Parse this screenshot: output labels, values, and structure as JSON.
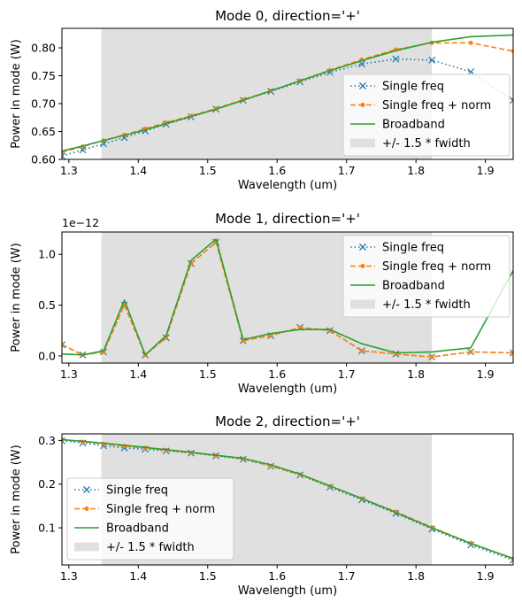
{
  "colors": {
    "single": "#1f77b4",
    "norm": "#ff7f0e",
    "broad": "#2ca02c",
    "band": "#e0e0e0"
  },
  "chart_data": [
    {
      "type": "line",
      "title": "Mode 0, direction='+'",
      "xlabel": "Wavelength (um)",
      "ylabel": "Power in mode (W)",
      "scale_label": "",
      "xlim": [
        1.29,
        1.94
      ],
      "ylim": [
        0.6,
        0.835
      ],
      "xticks": [
        1.3,
        1.4,
        1.5,
        1.6,
        1.7,
        1.8,
        1.9
      ],
      "yticks": [
        0.6,
        0.65,
        0.7,
        0.75,
        0.8
      ],
      "ytick_labels": [
        "0.60",
        "0.65",
        "0.70",
        "0.75",
        "0.80"
      ],
      "band": [
        1.347,
        1.823
      ],
      "legend_position": "lower-right",
      "legend": [
        "Single freq",
        "Single freq + norm",
        "Broadband",
        "+/- 1.5 * fwidth"
      ],
      "series": [
        {
          "name": "Single freq",
          "x": [
            1.29,
            1.32,
            1.35,
            1.38,
            1.41,
            1.44,
            1.476,
            1.512,
            1.551,
            1.591,
            1.633,
            1.676,
            1.722,
            1.771,
            1.823,
            1.879,
            1.94
          ],
          "y": [
            0.606,
            0.617,
            0.628,
            0.639,
            0.651,
            0.663,
            0.676,
            0.69,
            0.706,
            0.722,
            0.739,
            0.756,
            0.771,
            0.78,
            0.778,
            0.757,
            0.706
          ]
        },
        {
          "name": "Single freq + norm",
          "x": [
            1.29,
            1.32,
            1.35,
            1.38,
            1.41,
            1.44,
            1.476,
            1.512,
            1.551,
            1.591,
            1.633,
            1.676,
            1.722,
            1.771,
            1.823,
            1.879,
            1.94
          ],
          "y": [
            0.613,
            0.623,
            0.634,
            0.644,
            0.655,
            0.666,
            0.678,
            0.691,
            0.707,
            0.723,
            0.741,
            0.76,
            0.779,
            0.797,
            0.809,
            0.809,
            0.794
          ]
        },
        {
          "name": "Broadband",
          "x": [
            1.29,
            1.32,
            1.35,
            1.38,
            1.41,
            1.44,
            1.476,
            1.512,
            1.551,
            1.591,
            1.633,
            1.676,
            1.722,
            1.771,
            1.823,
            1.879,
            1.94
          ],
          "y": [
            0.615,
            0.624,
            0.634,
            0.643,
            0.653,
            0.664,
            0.677,
            0.69,
            0.706,
            0.723,
            0.741,
            0.759,
            0.777,
            0.795,
            0.81,
            0.82,
            0.823
          ]
        }
      ]
    },
    {
      "type": "line",
      "title": "Mode 1, direction='+'",
      "xlabel": "Wavelength (um)",
      "ylabel": "Power in mode (W)",
      "scale_label": "1e−12",
      "xlim": [
        1.29,
        1.94
      ],
      "ylim": [
        -0.07,
        1.22
      ],
      "xticks": [
        1.3,
        1.4,
        1.5,
        1.6,
        1.7,
        1.8,
        1.9
      ],
      "yticks": [
        0.0,
        0.5,
        1.0
      ],
      "ytick_labels": [
        "0.0",
        "0.5",
        "1.0"
      ],
      "band": [
        1.347,
        1.823
      ],
      "legend_position": "upper-right",
      "legend": [
        "Single freq",
        "Single freq + norm",
        "Broadband",
        "+/- 1.5 * fwidth"
      ],
      "series": [
        {
          "name": "Single freq",
          "x": [
            1.29,
            1.32,
            1.35,
            1.38,
            1.41,
            1.44,
            1.476,
            1.512,
            1.551,
            1.591,
            1.633,
            1.676,
            1.722,
            1.771,
            1.823,
            1.879,
            1.94
          ],
          "y": [
            0.11,
            0.01,
            0.04,
            0.5,
            0.01,
            0.18,
            0.91,
            1.12,
            0.15,
            0.2,
            0.28,
            0.25,
            0.05,
            0.02,
            -0.01,
            0.04,
            0.03
          ]
        },
        {
          "name": "Single freq + norm",
          "x": [
            1.29,
            1.32,
            1.35,
            1.38,
            1.41,
            1.44,
            1.476,
            1.512,
            1.551,
            1.591,
            1.633,
            1.676,
            1.722,
            1.771,
            1.823,
            1.879,
            1.94
          ],
          "y": [
            0.11,
            0.01,
            0.04,
            0.5,
            0.01,
            0.18,
            0.91,
            1.12,
            0.15,
            0.2,
            0.28,
            0.25,
            0.05,
            0.02,
            -0.01,
            0.04,
            0.03
          ]
        },
        {
          "name": "Broadband",
          "x": [
            1.29,
            1.32,
            1.35,
            1.38,
            1.41,
            1.44,
            1.476,
            1.512,
            1.551,
            1.591,
            1.633,
            1.676,
            1.722,
            1.771,
            1.823,
            1.879,
            1.94
          ],
          "y": [
            0.02,
            0.01,
            0.05,
            0.55,
            0.01,
            0.2,
            0.94,
            1.15,
            0.16,
            0.22,
            0.26,
            0.26,
            0.12,
            0.03,
            0.04,
            0.08,
            0.84
          ]
        }
      ]
    },
    {
      "type": "line",
      "title": "Mode 2, direction='+'",
      "xlabel": "Wavelength (um)",
      "ylabel": "Power in mode (W)",
      "scale_label": "",
      "xlim": [
        1.29,
        1.94
      ],
      "ylim": [
        0.015,
        0.315
      ],
      "xticks": [
        1.3,
        1.4,
        1.5,
        1.6,
        1.7,
        1.8,
        1.9
      ],
      "yticks": [
        0.1,
        0.2,
        0.3
      ],
      "ytick_labels": [
        "0.1",
        "0.2",
        "0.3"
      ],
      "band": [
        1.347,
        1.823
      ],
      "legend_position": "lower-left",
      "legend": [
        "Single freq",
        "Single freq + norm",
        "Broadband",
        "+/- 1.5 * fwidth"
      ],
      "series": [
        {
          "name": "Single freq",
          "x": [
            1.29,
            1.32,
            1.35,
            1.38,
            1.41,
            1.44,
            1.476,
            1.512,
            1.551,
            1.591,
            1.633,
            1.676,
            1.722,
            1.771,
            1.823,
            1.879,
            1.94
          ],
          "y": [
            0.299,
            0.294,
            0.288,
            0.283,
            0.28,
            0.276,
            0.271,
            0.265,
            0.257,
            0.241,
            0.221,
            0.193,
            0.164,
            0.133,
            0.097,
            0.061,
            0.026
          ]
        },
        {
          "name": "Single freq + norm",
          "x": [
            1.29,
            1.32,
            1.35,
            1.38,
            1.41,
            1.44,
            1.476,
            1.512,
            1.551,
            1.591,
            1.633,
            1.676,
            1.722,
            1.771,
            1.823,
            1.879,
            1.94
          ],
          "y": [
            0.302,
            0.297,
            0.292,
            0.287,
            0.283,
            0.278,
            0.272,
            0.266,
            0.258,
            0.242,
            0.222,
            0.195,
            0.167,
            0.137,
            0.101,
            0.065,
            0.029
          ]
        },
        {
          "name": "Broadband",
          "x": [
            1.29,
            1.32,
            1.35,
            1.38,
            1.41,
            1.44,
            1.476,
            1.512,
            1.551,
            1.591,
            1.633,
            1.676,
            1.722,
            1.771,
            1.823,
            1.879,
            1.94
          ],
          "y": [
            0.302,
            0.298,
            0.294,
            0.289,
            0.284,
            0.279,
            0.273,
            0.266,
            0.259,
            0.244,
            0.223,
            0.196,
            0.167,
            0.135,
            0.1,
            0.064,
            0.03
          ]
        }
      ]
    }
  ]
}
